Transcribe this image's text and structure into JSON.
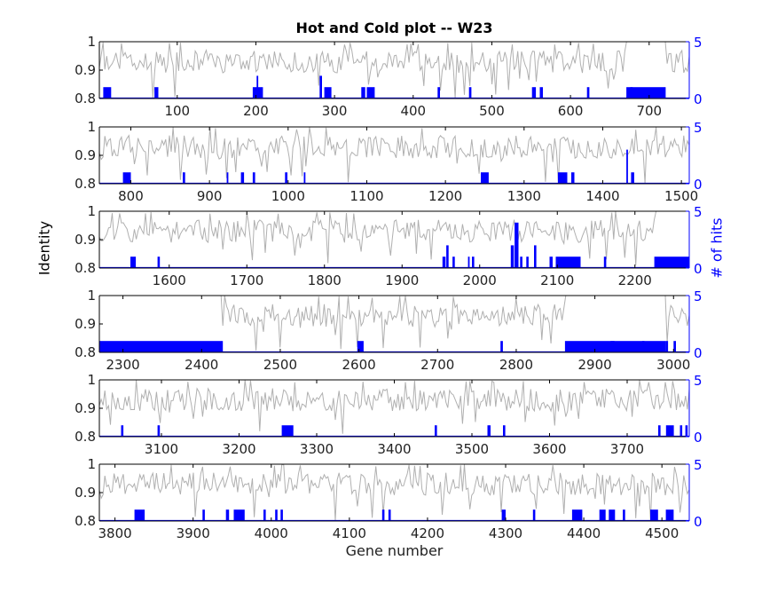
{
  "chart_data": {
    "type": "line",
    "title": "Hot and Cold plot -- W23",
    "xlabel": "Gene number",
    "ylabel_left": "Identity",
    "ylabel_right": "# of hits",
    "left_axis": {
      "ylim": [
        0.8,
        1.0
      ],
      "ticks": [
        "0.8",
        "0.9",
        "1"
      ]
    },
    "right_axis": {
      "ylim": [
        0,
        5
      ],
      "ticks": [
        "0",
        "5"
      ],
      "color": "#0000ff"
    },
    "series": [
      {
        "name": "Identity",
        "color": "#b0b0b0",
        "axis": "left"
      },
      {
        "name": "# of hits",
        "color": "#0000ff",
        "axis": "right"
      }
    ],
    "panels": [
      {
        "xlim": [
          760,
          1510
        ],
        "xticks": [
          100,
          200,
          300,
          400,
          500,
          600,
          700
        ],
        "x_offset": 0,
        "note": "first panel axis shows genes 1-750 labelled 100..700",
        "hits": [
          [
            765,
            775,
            1
          ],
          [
            830,
            835,
            1
          ],
          [
            955,
            968,
            1
          ],
          [
            960,
            962,
            2
          ],
          [
            1040,
            1043,
            2
          ],
          [
            1046,
            1055,
            1
          ],
          [
            1093,
            1098,
            1
          ],
          [
            1100,
            1110,
            1
          ],
          [
            1190,
            1193,
            1
          ],
          [
            1230,
            1233,
            1
          ],
          [
            1310,
            1315,
            1
          ],
          [
            1320,
            1324,
            1
          ],
          [
            1380,
            1383,
            1
          ],
          [
            1430,
            1480,
            1
          ],
          [
            1435,
            1438,
            1
          ]
        ],
        "seed": 3
      },
      {
        "xlim": [
          760,
          1510
        ],
        "xticks": [
          800,
          900,
          1000,
          1100,
          1200,
          1300,
          1400,
          1500
        ],
        "hits": [
          [
            790,
            800,
            1
          ],
          [
            866,
            869,
            1
          ],
          [
            922,
            924,
            1
          ],
          [
            940,
            944,
            1
          ],
          [
            955,
            958,
            1
          ],
          [
            996,
            999,
            1
          ],
          [
            1020,
            1022,
            1
          ],
          [
            1245,
            1255,
            1
          ],
          [
            1343,
            1355,
            1
          ],
          [
            1360,
            1364,
            1
          ],
          [
            1430,
            1432,
            3
          ],
          [
            1436,
            1440,
            1
          ]
        ],
        "seed": 7
      },
      {
        "xlim": [
          1510,
          2270
        ],
        "xticks": [
          1600,
          1700,
          1800,
          1900,
          2000,
          2100,
          2200
        ],
        "hits": [
          [
            1550,
            1557,
            1
          ],
          [
            1585,
            1588,
            1
          ],
          [
            1952,
            1956,
            1
          ],
          [
            1957,
            1960,
            2
          ],
          [
            1965,
            1968,
            1
          ],
          [
            1985,
            1987,
            1
          ],
          [
            1990,
            1993,
            1
          ],
          [
            2040,
            2044,
            2
          ],
          [
            2045,
            2050,
            4
          ],
          [
            2046,
            2048,
            3
          ],
          [
            2052,
            2055,
            1
          ],
          [
            2060,
            2063,
            1
          ],
          [
            2070,
            2073,
            2
          ],
          [
            2090,
            2094,
            1
          ],
          [
            2098,
            2130,
            1
          ],
          [
            2160,
            2163,
            1
          ],
          [
            2225,
            2270,
            1
          ]
        ],
        "seed": 11
      },
      {
        "xlim": [
          2270,
          3020
        ],
        "xticks": [
          2300,
          2400,
          2500,
          2600,
          2700,
          2800,
          2900,
          3000
        ],
        "hits": [
          [
            2270,
            2427,
            1
          ],
          [
            2598,
            2606,
            1
          ],
          [
            2780,
            2783,
            1
          ],
          [
            2862,
            2990,
            1
          ],
          [
            2920,
            2925,
            1
          ],
          [
            2960,
            2963,
            1
          ],
          [
            2990,
            2993,
            1
          ],
          [
            3000,
            3003,
            1
          ]
        ],
        "seed": 19
      },
      {
        "xlim": [
          3020,
          3780
        ],
        "xticks": [
          3100,
          3200,
          3300,
          3400,
          3500,
          3600,
          3700
        ],
        "hits": [
          [
            3048,
            3051,
            1
          ],
          [
            3095,
            3098,
            1
          ],
          [
            3255,
            3270,
            1
          ],
          [
            3452,
            3455,
            1
          ],
          [
            3520,
            3524,
            1
          ],
          [
            3540,
            3543,
            1
          ],
          [
            3740,
            3743,
            1
          ],
          [
            3750,
            3760,
            1
          ],
          [
            3768,
            3771,
            1
          ],
          [
            3775,
            3778,
            1
          ]
        ],
        "seed": 23
      },
      {
        "xlim": [
          3780,
          4535
        ],
        "xticks": [
          3800,
          3900,
          4000,
          4100,
          4200,
          4300,
          4400,
          4500
        ],
        "hits": [
          [
            3825,
            3838,
            1
          ],
          [
            3912,
            3915,
            1
          ],
          [
            3942,
            3946,
            1
          ],
          [
            3952,
            3966,
            1
          ],
          [
            3990,
            3993,
            1
          ],
          [
            4005,
            4008,
            1
          ],
          [
            4012,
            4015,
            1
          ],
          [
            4142,
            4145,
            1
          ],
          [
            4150,
            4153,
            1
          ],
          [
            4295,
            4300,
            1
          ],
          [
            4335,
            4338,
            1
          ],
          [
            4385,
            4398,
            1
          ],
          [
            4420,
            4428,
            1
          ],
          [
            4432,
            4440,
            1
          ],
          [
            4450,
            4453,
            1
          ],
          [
            4485,
            4495,
            1
          ],
          [
            4505,
            4515,
            1
          ]
        ],
        "seed": 31
      }
    ]
  }
}
